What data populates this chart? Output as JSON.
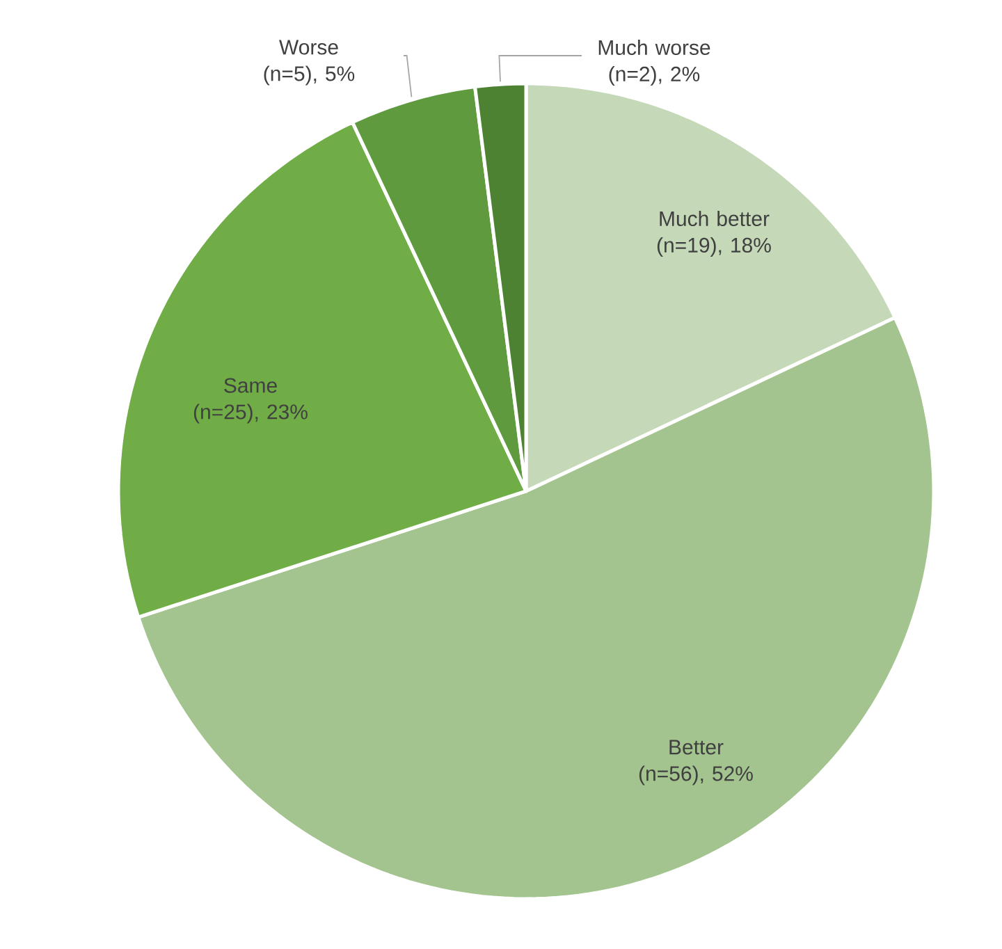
{
  "chart_data": {
    "type": "pie",
    "categories": [
      "Much better",
      "Better",
      "Same",
      "Worse",
      "Much worse"
    ],
    "values": [
      18,
      52,
      23,
      5,
      2
    ],
    "value_labels": [
      "(n=19), 18%",
      "(n=56), 52%",
      "(n=25), 23%",
      "(n=5), 5%",
      "(n=2), 2%"
    ],
    "colors": [
      "#c5d9b9",
      "#a3c48f",
      "#70ad47",
      "#5f9a3e",
      "#4e8233"
    ]
  }
}
